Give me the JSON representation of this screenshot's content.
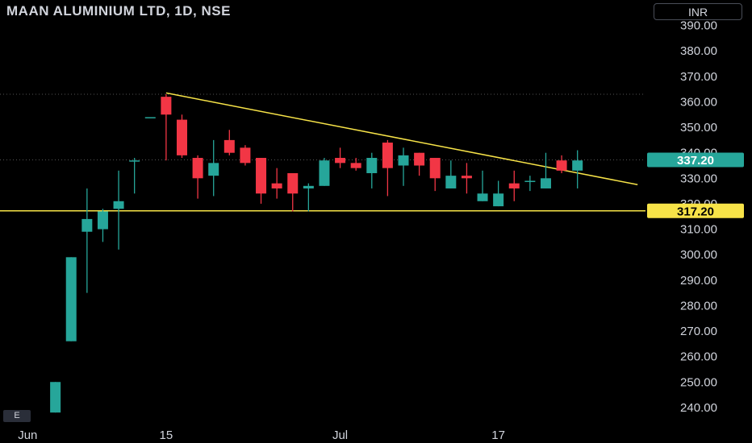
{
  "header": {
    "title": "MAAN ALUMINIUM LTD, 1D, NSE",
    "currency": "INR",
    "e_button": "E"
  },
  "colors": {
    "background": "#000000",
    "up": "#26a69a",
    "down": "#f23645",
    "trendline": "#f7e348",
    "support_line": "#f7e348",
    "current_badge": "#26a69a",
    "support_badge": "#f7e348",
    "grid_dotted": "#555555"
  },
  "chart_data": {
    "type": "candlestick",
    "symbol": "MAAN ALUMINIUM LTD",
    "interval": "1D",
    "exchange": "NSE",
    "y_ticks": [
      "240.00",
      "250.00",
      "260.00",
      "270.00",
      "280.00",
      "290.00",
      "300.00",
      "310.00",
      "320.00",
      "330.00",
      "340.00",
      "350.00",
      "360.00",
      "370.00",
      "380.00",
      "390.00"
    ],
    "x_ticks": [
      {
        "label": "Jun",
        "index": -1.75
      },
      {
        "label": "15",
        "index": 7
      },
      {
        "label": "Jul",
        "index": 18
      },
      {
        "label": "17",
        "index": 28
      }
    ],
    "candles": [
      {
        "o": 238,
        "h": 250,
        "l": 238,
        "c": 250
      },
      {
        "o": 266,
        "h": 299,
        "l": 266,
        "c": 299
      },
      {
        "o": 309,
        "h": 326,
        "l": 285,
        "c": 314
      },
      {
        "o": 310,
        "h": 318,
        "l": 305,
        "c": 317
      },
      {
        "o": 318,
        "h": 333,
        "l": 302,
        "c": 321
      },
      {
        "o": 337,
        "h": 338,
        "l": 324,
        "c": 337
      },
      {
        "o": 354,
        "h": 354,
        "l": 354,
        "c": 354
      },
      {
        "o": 362,
        "h": 363,
        "l": 337,
        "c": 355
      },
      {
        "o": 353,
        "h": 355,
        "l": 338,
        "c": 339
      },
      {
        "o": 338,
        "h": 339,
        "l": 322,
        "c": 330
      },
      {
        "o": 331,
        "h": 345,
        "l": 323,
        "c": 336
      },
      {
        "o": 345,
        "h": 349,
        "l": 339,
        "c": 340
      },
      {
        "o": 342,
        "h": 343,
        "l": 335,
        "c": 336
      },
      {
        "o": 338,
        "h": 338,
        "l": 320,
        "c": 324
      },
      {
        "o": 328,
        "h": 334,
        "l": 322,
        "c": 326
      },
      {
        "o": 332,
        "h": 332,
        "l": 317,
        "c": 324
      },
      {
        "o": 326,
        "h": 328,
        "l": 317,
        "c": 327
      },
      {
        "o": 327,
        "h": 338,
        "l": 327,
        "c": 337
      },
      {
        "o": 338,
        "h": 342,
        "l": 334,
        "c": 336
      },
      {
        "o": 336,
        "h": 338,
        "l": 333,
        "c": 334
      },
      {
        "o": 332,
        "h": 340,
        "l": 326,
        "c": 338
      },
      {
        "o": 344,
        "h": 345,
        "l": 323,
        "c": 334
      },
      {
        "o": 335,
        "h": 342,
        "l": 327,
        "c": 339
      },
      {
        "o": 340,
        "h": 340,
        "l": 331,
        "c": 335
      },
      {
        "o": 338,
        "h": 338,
        "l": 325,
        "c": 330
      },
      {
        "o": 326,
        "h": 337,
        "l": 326,
        "c": 331
      },
      {
        "o": 331,
        "h": 336,
        "l": 324,
        "c": 330
      },
      {
        "o": 321,
        "h": 333,
        "l": 321,
        "c": 324
      },
      {
        "o": 319,
        "h": 329,
        "l": 319,
        "c": 324
      },
      {
        "o": 328,
        "h": 333,
        "l": 321,
        "c": 326
      },
      {
        "o": 329,
        "h": 331,
        "l": 325,
        "c": 329
      },
      {
        "o": 326,
        "h": 340,
        "l": 326,
        "c": 330
      },
      {
        "o": 337,
        "h": 339,
        "l": 332,
        "c": 333
      },
      {
        "o": 333,
        "h": 341,
        "l": 326,
        "c": 337
      }
    ],
    "trendline": {
      "from": {
        "index": 7,
        "price": 363.5
      },
      "to": {
        "index": 36.8,
        "price": 327.5
      }
    },
    "support_level": 317.2,
    "last_price": 337.2,
    "last_price_label": "337.20",
    "support_label": "317.20",
    "y_range": [
      233,
      400
    ],
    "x_range_index": [
      -3.5,
      37.3
    ],
    "dotted_lines": [
      363,
      337.2
    ]
  }
}
